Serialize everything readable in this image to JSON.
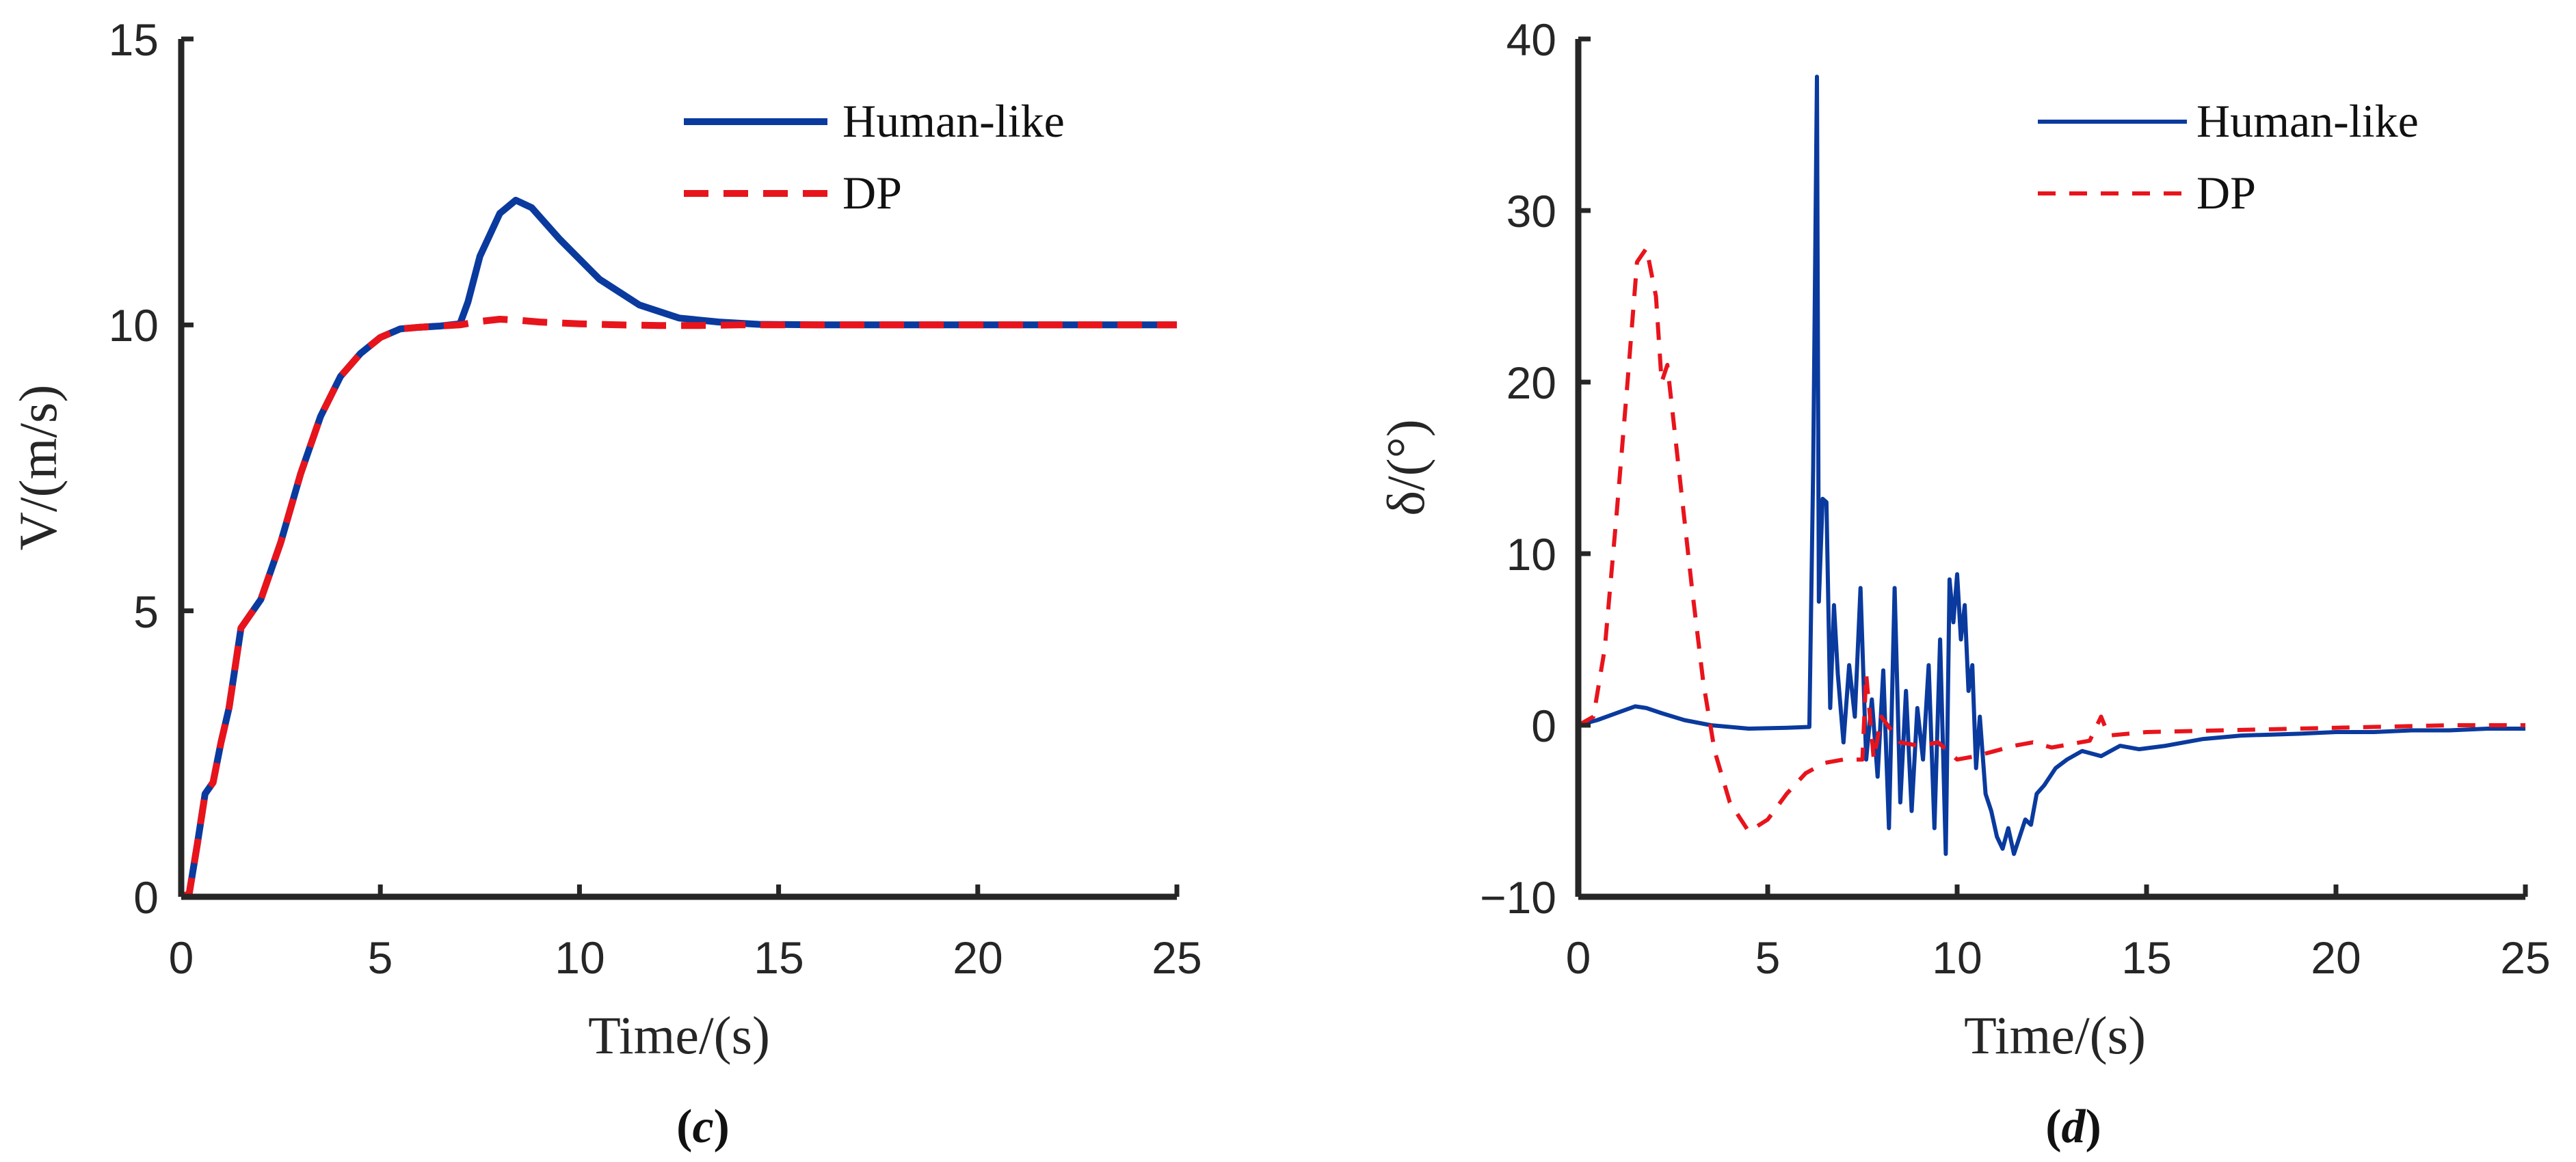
{
  "chart_data": [
    {
      "type": "line",
      "panel": "c",
      "caption": {
        "open": "(",
        "letter": "c",
        "close": ")"
      },
      "xlabel": "Time/(s)",
      "ylabel": "V/(m/s)",
      "xlim": [
        0,
        25
      ],
      "ylim": [
        0,
        15
      ],
      "xticks": [
        "0",
        "5",
        "10",
        "15",
        "20",
        "25"
      ],
      "yticks": [
        "0",
        "5",
        "10",
        "15"
      ],
      "grid": false,
      "legend": "top-right",
      "series": [
        {
          "name": "Human-like",
          "color": "#0a3a9e",
          "dash": "solid",
          "x": [
            0,
            0.2,
            0.4,
            0.6,
            0.8,
            1.0,
            1.2,
            1.5,
            2.0,
            2.5,
            3.0,
            3.5,
            4.0,
            4.5,
            5.0,
            5.5,
            6.0,
            6.5,
            7.0,
            7.2,
            7.5,
            8.0,
            8.4,
            8.8,
            9.5,
            10.5,
            11.5,
            12.5,
            13.5,
            14.5,
            16,
            18,
            20,
            22,
            25
          ],
          "y": [
            0,
            0.05,
            0.9,
            1.8,
            2.0,
            2.7,
            3.3,
            4.7,
            5.2,
            6.2,
            7.4,
            8.4,
            9.1,
            9.5,
            9.78,
            9.93,
            9.96,
            9.98,
            10.02,
            10.4,
            11.2,
            11.95,
            12.18,
            12.05,
            11.5,
            10.8,
            10.35,
            10.12,
            10.05,
            10.01,
            10.0,
            10.0,
            10.0,
            10.0,
            10.0
          ]
        },
        {
          "name": "DP",
          "color": "#e8141c",
          "dash": "dashed",
          "x": [
            0,
            0.2,
            0.4,
            0.6,
            0.8,
            1.0,
            1.2,
            1.5,
            2.0,
            2.5,
            3.0,
            3.5,
            4.0,
            4.5,
            5.0,
            5.5,
            6.0,
            6.5,
            7.0,
            7.5,
            8.0,
            8.5,
            9.0,
            10.0,
            11.0,
            12.0,
            13.0,
            14.0,
            15.0,
            17,
            20,
            25
          ],
          "y": [
            0,
            0.05,
            0.9,
            1.8,
            2.0,
            2.7,
            3.3,
            4.7,
            5.2,
            6.2,
            7.4,
            8.4,
            9.1,
            9.5,
            9.78,
            9.93,
            9.96,
            9.98,
            10.0,
            10.06,
            10.1,
            10.08,
            10.05,
            10.02,
            10.0,
            9.99,
            9.99,
            10.0,
            10.0,
            10.0,
            10.0,
            10.0
          ]
        }
      ]
    },
    {
      "type": "line",
      "panel": "d",
      "caption": {
        "open": "(",
        "letter": "d",
        "close": ")"
      },
      "xlabel": "Time/(s)",
      "ylabel": "δ/(°)",
      "xlim": [
        0,
        25
      ],
      "ylim": [
        -10,
        40
      ],
      "xticks": [
        "0",
        "5",
        "10",
        "15",
        "20",
        "25"
      ],
      "yticks": [
        "−10",
        "0",
        "10",
        "20",
        "30",
        "40"
      ],
      "grid": false,
      "legend": "top-right",
      "series": [
        {
          "name": "Human-like",
          "color": "#0a3a9e",
          "dash": "solid",
          "x": [
            0,
            0.5,
            1.0,
            1.5,
            1.8,
            2.2,
            2.8,
            3.5,
            4.5,
            5.5,
            6.1,
            6.2,
            6.3,
            6.35,
            6.45,
            6.55,
            6.65,
            6.75,
            6.85,
            7.0,
            7.15,
            7.3,
            7.45,
            7.6,
            7.75,
            7.9,
            8.05,
            8.2,
            8.35,
            8.5,
            8.65,
            8.8,
            8.95,
            9.1,
            9.25,
            9.4,
            9.55,
            9.7,
            9.8,
            9.9,
            10.0,
            10.1,
            10.2,
            10.3,
            10.4,
            10.5,
            10.6,
            10.75,
            10.9,
            11.05,
            11.2,
            11.35,
            11.5,
            11.65,
            11.8,
            11.95,
            12.1,
            12.3,
            12.6,
            12.9,
            13.3,
            13.8,
            14.3,
            14.8,
            15.5,
            16.5,
            17.5,
            19,
            20,
            21,
            22,
            23,
            24,
            25
          ],
          "y": [
            0,
            0.3,
            0.7,
            1.1,
            1.0,
            0.7,
            0.3,
            0,
            -0.2,
            -0.15,
            -0.1,
            15,
            37.8,
            7.2,
            13.2,
            13.0,
            1.0,
            7.0,
            3.0,
            -1.0,
            3.5,
            0.5,
            8.0,
            -2.0,
            1.5,
            -3.0,
            3.2,
            -6.0,
            8.0,
            -4.5,
            2.0,
            -5.0,
            1.0,
            -2.0,
            3.5,
            -6.0,
            5.0,
            -7.5,
            8.5,
            6.0,
            8.8,
            5.0,
            7.0,
            2.0,
            3.5,
            -2.5,
            0.5,
            -4.0,
            -5.0,
            -6.5,
            -7.2,
            -6.0,
            -7.5,
            -6.5,
            -5.5,
            -5.8,
            -4.0,
            -3.5,
            -2.5,
            -2.0,
            -1.5,
            -1.8,
            -1.2,
            -1.4,
            -1.2,
            -0.8,
            -0.6,
            -0.5,
            -0.4,
            -0.4,
            -0.3,
            -0.3,
            -0.2,
            -0.2
          ]
        },
        {
          "name": "DP",
          "color": "#e8141c",
          "dash": "dashed",
          "x": [
            0,
            0.4,
            0.7,
            1.0,
            1.3,
            1.55,
            1.8,
            2.05,
            2.2,
            2.35,
            2.7,
            3.0,
            3.3,
            3.6,
            4.0,
            4.5,
            5.0,
            5.5,
            6.0,
            6.5,
            7.0,
            7.5,
            7.6,
            7.8,
            8.0,
            8.5,
            9.0,
            9.5,
            10.0,
            10.5,
            11.0,
            11.5,
            12.0,
            12.5,
            13.0,
            13.5,
            13.8,
            14.0,
            14.5,
            15,
            17,
            19,
            21,
            23,
            25
          ],
          "y": [
            0,
            0.5,
            4.5,
            12.0,
            20.0,
            27.0,
            27.8,
            25.0,
            20.0,
            21.0,
            14.0,
            8.0,
            2.5,
            -1.5,
            -4.5,
            -6.2,
            -5.5,
            -4.0,
            -2.8,
            -2.2,
            -2.0,
            -2.0,
            3.0,
            -2.0,
            0.5,
            -1.0,
            -1.2,
            -1.0,
            -2.0,
            -1.8,
            -1.5,
            -1.2,
            -1.0,
            -1.3,
            -1.1,
            -0.9,
            0.5,
            -0.6,
            -0.5,
            -0.4,
            -0.3,
            -0.2,
            -0.1,
            0,
            0
          ]
        }
      ]
    }
  ]
}
